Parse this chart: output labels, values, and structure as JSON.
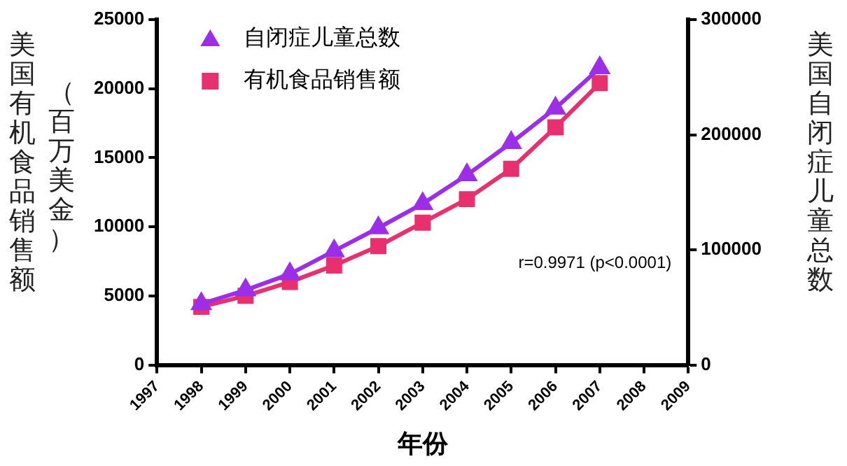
{
  "chart_data": {
    "type": "line",
    "xlabel": "年份",
    "ylabel": "美国有机食品销售额",
    "y2label": "美国自闭症儿童总数",
    "x": [
      1998,
      1999,
      2000,
      2001,
      2002,
      2003,
      2004,
      2005,
      2006,
      2007
    ],
    "series": [
      {
        "name": "自闭症儿童总数",
        "color": "#9b2ee6",
        "axis": "y2",
        "marker": "triangle",
        "values": [
          53000,
          65000,
          79000,
          99000,
          119000,
          140000,
          165000,
          193000,
          223000,
          258000
        ]
      },
      {
        "name": "有机食品销售额",
        "color": "#e8306e",
        "marker": "square",
        "values": [
          4200,
          5000,
          6000,
          7200,
          8600,
          10300,
          12000,
          14200,
          17200,
          20400
        ]
      }
    ],
    "xlim": [
      1997,
      2009
    ],
    "xticks": [
      1997,
      1998,
      1999,
      2000,
      2001,
      2002,
      2003,
      2004,
      2005,
      2006,
      2007,
      2008,
      2009
    ],
    "ylim": [
      0,
      25000
    ],
    "yticks": [
      0,
      5000,
      10000,
      15000,
      20000,
      25000
    ],
    "y2lim": [
      0,
      300000
    ],
    "y2ticks": [
      0,
      100000,
      200000,
      300000
    ],
    "legend": "top left",
    "grid": false,
    "annotations": [
      "（百万美金）",
      "r=0.9971 (p<0.0001)"
    ]
  }
}
